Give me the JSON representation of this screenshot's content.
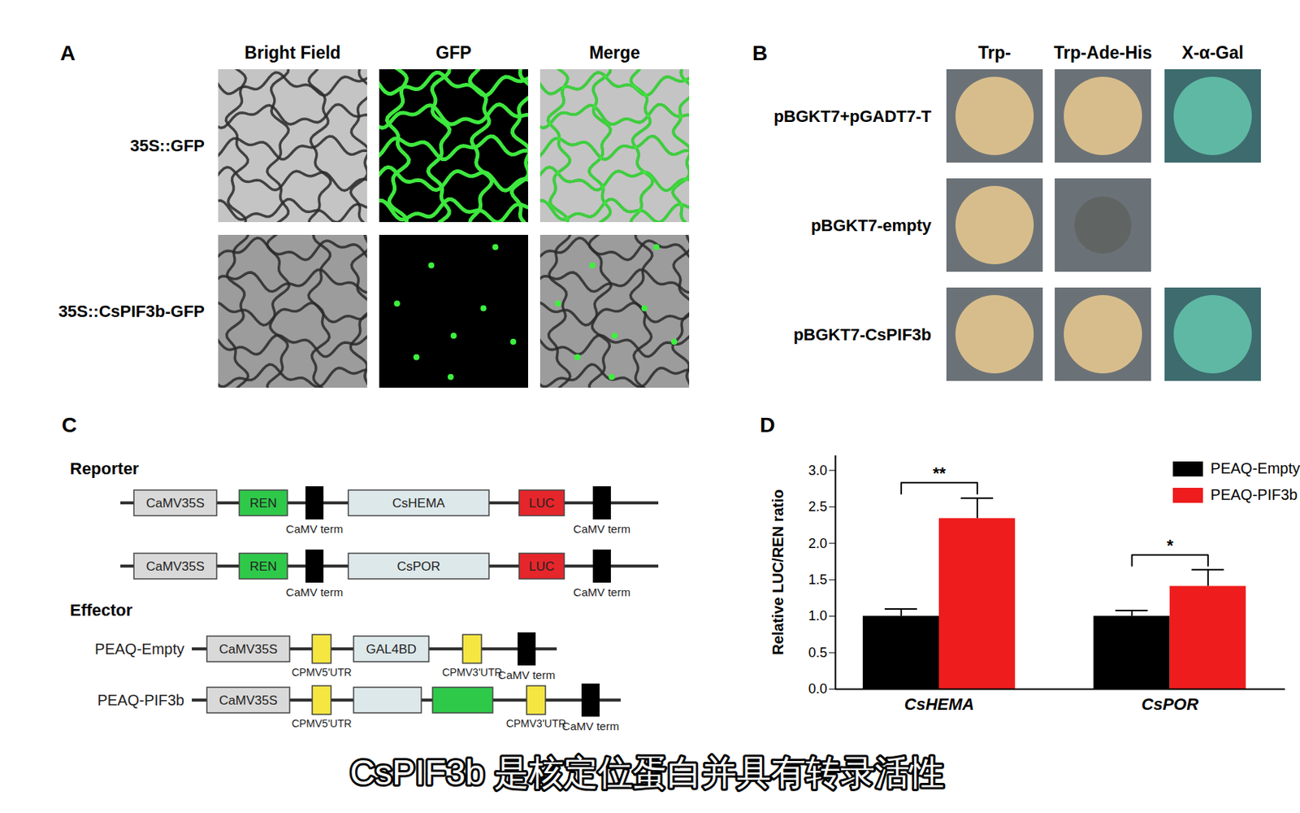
{
  "panel_labels": [
    "A",
    "B",
    "C",
    "D"
  ],
  "panel_A": {
    "columns": [
      "Bright Field",
      "GFP",
      "Merge"
    ],
    "rows": [
      "35S::GFP",
      "35S::CsPIF3b-GFP"
    ]
  },
  "panel_B": {
    "columns": [
      "Trp-",
      "Trp-Ade-His",
      "X-α-Gal"
    ],
    "rows": [
      {
        "label": "pBGKT7+pGADT7-T",
        "spots": [
          true,
          true,
          true
        ]
      },
      {
        "label": "pBGKT7-empty",
        "spots": [
          true,
          false,
          null
        ]
      },
      {
        "label": "pBGKT7-CsPIF3b",
        "spots": [
          true,
          true,
          true
        ]
      }
    ]
  },
  "panel_C": {
    "reporter_title": "Reporter",
    "reporters": [
      {
        "promoter": "CaMV35S",
        "gene1": "REN",
        "term1": "CaMV term",
        "insert": "CsHEMA",
        "gene2": "LUC",
        "term2": "CaMV term"
      },
      {
        "promoter": "CaMV35S",
        "gene1": "REN",
        "term1": "CaMV term",
        "insert": "CsPOR",
        "gene2": "LUC",
        "term2": "CaMV term"
      }
    ],
    "effector_title": "Effector",
    "effectors": [
      {
        "name": "PEAQ-Empty",
        "promoter": "CaMV35S",
        "utr5": "CPMV5'UTR",
        "fusion": "GAL4BD",
        "utr3": "CPMV3'UTR",
        "term": "CaMV term"
      },
      {
        "name": "PEAQ-PIF3b",
        "promoter": "CaMV35S",
        "utr5": "CPMV5'UTR",
        "fusion": null,
        "insert": null,
        "utr3": "CPMV3'UTR",
        "term": "CaMV term"
      }
    ]
  },
  "chart_data": {
    "type": "bar",
    "categories": [
      "CsHEMA",
      "CsPOR"
    ],
    "series": [
      {
        "name": "PEAQ-Empty",
        "color": "#000000",
        "values": [
          1.0,
          1.0
        ],
        "errors": [
          0.1,
          0.08
        ]
      },
      {
        "name": "PEAQ-PIF3b",
        "color": "#ee1c1c",
        "values": [
          2.34,
          1.41
        ],
        "errors": [
          0.28,
          0.23
        ]
      }
    ],
    "ylabel": "Relative LUC/REN ratio",
    "ylim": [
      0,
      3.2
    ],
    "yticks": [
      {
        "value": 0,
        "label": "0.0"
      },
      0.5,
      {
        "value": 1,
        "label": "1.0"
      },
      1.5,
      {
        "value": 2,
        "label": "2.0"
      },
      2.5,
      {
        "value": 3,
        "label": "3.0"
      }
    ],
    "legend": "top-right",
    "significance": [
      {
        "category": "CsHEMA",
        "label": "**",
        "y": 2.83
      },
      {
        "category": "CsPOR",
        "label": "*",
        "y": 1.84
      }
    ]
  },
  "caption": "CsPIF3b 是核定位蛋白并具有转录活性"
}
